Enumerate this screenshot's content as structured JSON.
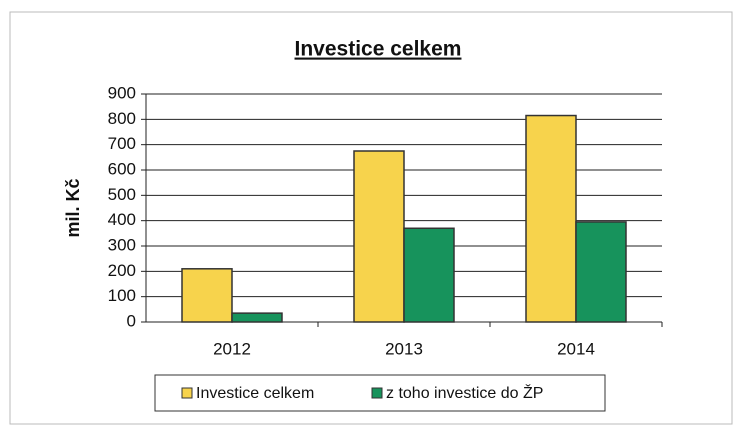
{
  "chart_data": {
    "type": "bar",
    "title": "Investice celkem",
    "y_label": "mil. Kč",
    "categories": [
      "2012",
      "2013",
      "2014"
    ],
    "series": [
      {
        "name": "Investice celkem",
        "color": "#f7d34c",
        "values": [
          210,
          675,
          815
        ]
      },
      {
        "name": "z toho investice do ŽP",
        "color": "#17935c",
        "values": [
          35,
          370,
          395
        ]
      }
    ],
    "ylim": [
      0,
      900
    ],
    "yticks": [
      0,
      100,
      200,
      300,
      400,
      500,
      600,
      700,
      800,
      900
    ],
    "grid": true,
    "legend": "bottom"
  }
}
